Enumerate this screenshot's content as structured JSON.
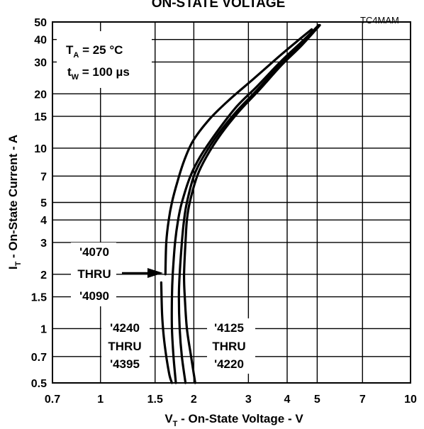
{
  "chart_data": {
    "type": "line",
    "title": "ON-STATE VOLTAGE",
    "figure_code": "TC4MAM",
    "xlabel": {
      "main": "V",
      "sub": "T",
      "rest": " - On-State Voltage - V"
    },
    "ylabel": {
      "main": "I",
      "sub": "T",
      "rest": " - On-State Current - A"
    },
    "xscale": "log",
    "yscale": "log",
    "xlim": [
      0.7,
      10
    ],
    "ylim": [
      0.5,
      50
    ],
    "grid": true,
    "x_ticks": [
      {
        "value": 0.7,
        "label": "0.7"
      },
      {
        "value": 1,
        "label": "1"
      },
      {
        "value": 1.5,
        "label": "1.5"
      },
      {
        "value": 2,
        "label": "2"
      },
      {
        "value": 3,
        "label": "3"
      },
      {
        "value": 4,
        "label": "4"
      },
      {
        "value": 5,
        "label": "5"
      },
      {
        "value": 7,
        "label": "7"
      },
      {
        "value": 10,
        "label": "10"
      }
    ],
    "y_ticks": [
      {
        "value": 0.5,
        "label": "0.5"
      },
      {
        "value": 0.7,
        "label": "0.7"
      },
      {
        "value": 1,
        "label": "1"
      },
      {
        "value": 1.5,
        "label": "1.5"
      },
      {
        "value": 2,
        "label": "2"
      },
      {
        "value": 3,
        "label": "3"
      },
      {
        "value": 4,
        "label": "4"
      },
      {
        "value": 5,
        "label": "5"
      },
      {
        "value": 7,
        "label": "7"
      },
      {
        "value": 10,
        "label": "10"
      },
      {
        "value": 15,
        "label": "15"
      },
      {
        "value": 20,
        "label": "20"
      },
      {
        "value": 30,
        "label": "30"
      },
      {
        "value": 40,
        "label": "40"
      },
      {
        "value": 50,
        "label": "50"
      }
    ],
    "conditions": {
      "ta": {
        "main": "T",
        "sub": "A",
        "rest": " = 25 °C"
      },
      "tw": {
        "main": "t",
        "sub": "W",
        "rest": " = 100 µs"
      }
    },
    "series": [
      {
        "label_lines": [
          "'4070",
          "THRU",
          "'4090"
        ],
        "points": [
          [
            1.57,
            1.8
          ],
          [
            1.58,
            1.2
          ],
          [
            1.6,
            0.9
          ],
          [
            1.63,
            0.7
          ],
          [
            1.67,
            0.55
          ],
          [
            1.7,
            0.5
          ]
        ]
      },
      {
        "label_lines": [
          "'4240",
          "THRU",
          "'4395"
        ],
        "points": [
          [
            1.62,
            2
          ],
          [
            1.63,
            3
          ],
          [
            1.66,
            4
          ],
          [
            1.7,
            5
          ],
          [
            1.77,
            6.5
          ],
          [
            1.86,
            8.5
          ],
          [
            1.99,
            11
          ],
          [
            2.25,
            14.5
          ],
          [
            2.6,
            18.5
          ],
          [
            3.1,
            24
          ],
          [
            3.75,
            32
          ],
          [
            4.3,
            39
          ],
          [
            4.8,
            45.5
          ]
        ]
      },
      {
        "label_lines": [
          "'4125",
          "THRU",
          "'4220"
        ],
        "points": [
          [
            1.75,
            0.5
          ],
          [
            1.72,
            0.7
          ],
          [
            1.7,
            1
          ],
          [
            1.7,
            1.5
          ],
          [
            1.71,
            2
          ],
          [
            1.74,
            3
          ],
          [
            1.78,
            4
          ],
          [
            1.83,
            5
          ],
          [
            1.95,
            7
          ],
          [
            2.1,
            9
          ],
          [
            2.35,
            12
          ],
          [
            2.75,
            17
          ],
          [
            3.2,
            22
          ],
          [
            3.8,
            30
          ],
          [
            4.4,
            38
          ],
          [
            5.0,
            47
          ]
        ]
      },
      {
        "points": [
          [
            1.88,
            0.5
          ],
          [
            1.83,
            0.7
          ],
          [
            1.8,
            1
          ],
          [
            1.79,
            1.5
          ],
          [
            1.8,
            2
          ],
          [
            1.83,
            3
          ],
          [
            1.86,
            4
          ],
          [
            1.9,
            5
          ],
          [
            2.0,
            7
          ],
          [
            2.15,
            9
          ],
          [
            2.4,
            12
          ],
          [
            2.75,
            16
          ],
          [
            3.2,
            21
          ],
          [
            3.8,
            29
          ],
          [
            4.4,
            37
          ],
          [
            5.05,
            48
          ]
        ]
      },
      {
        "points": [
          [
            2.02,
            0.5
          ],
          [
            1.96,
            0.7
          ],
          [
            1.9,
            1
          ],
          [
            1.87,
            1.5
          ],
          [
            1.86,
            2
          ],
          [
            1.88,
            3
          ],
          [
            1.9,
            4
          ],
          [
            1.94,
            5
          ],
          [
            2.05,
            7
          ],
          [
            2.2,
            9
          ],
          [
            2.45,
            12
          ],
          [
            2.8,
            16
          ],
          [
            3.25,
            21
          ],
          [
            3.85,
            29
          ],
          [
            4.45,
            37
          ],
          [
            5.1,
            48
          ]
        ]
      }
    ]
  }
}
